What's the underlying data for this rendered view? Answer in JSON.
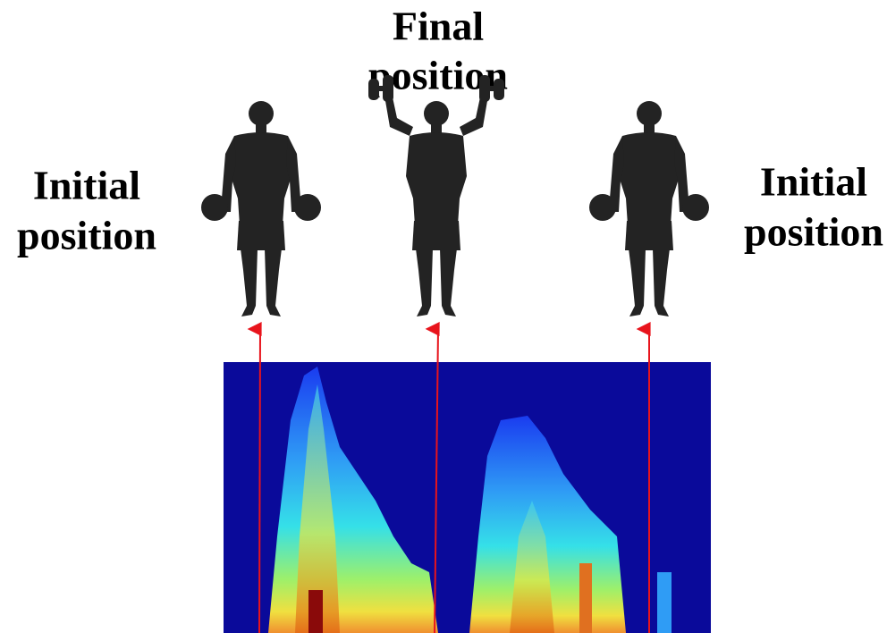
{
  "labels": [
    {
      "lines": [
        "Initial",
        "position"
      ]
    },
    {
      "lines": [
        "Final",
        "position"
      ]
    },
    {
      "lines": [
        "Initial",
        "position"
      ]
    }
  ]
}
